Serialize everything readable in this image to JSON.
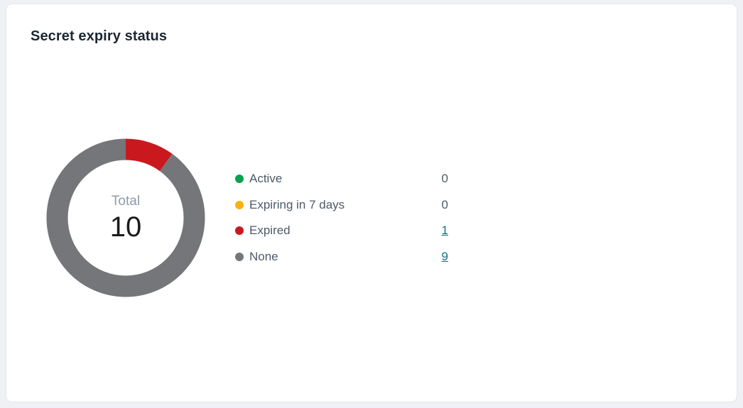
{
  "page": {
    "background_color": "#f0f1f4"
  },
  "card": {
    "title": "Secret expiry status"
  },
  "chart_data": {
    "type": "pie",
    "subtype": "donut",
    "title": "Secret expiry status",
    "center_label": "Total",
    "total": 10,
    "categories": [
      "Active",
      "Expiring in 7 days",
      "Expired",
      "None"
    ],
    "values": [
      0,
      0,
      1,
      9
    ],
    "colors": [
      "#0ca04f",
      "#fbb110",
      "#c9191e",
      "#757679"
    ],
    "value_is_link": [
      false,
      false,
      true,
      true
    ],
    "legend_position": "right",
    "link_color": "#0f7282",
    "start_angle_deg": 0,
    "direction": "clockwise"
  }
}
